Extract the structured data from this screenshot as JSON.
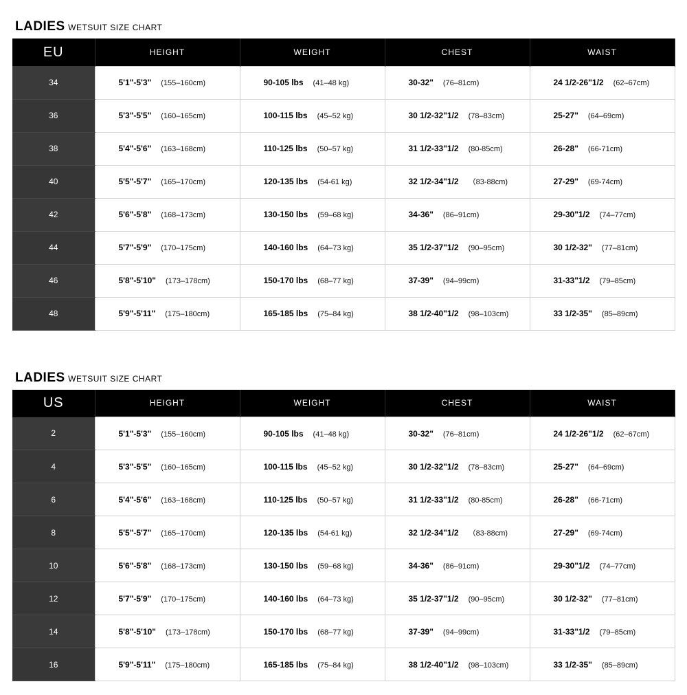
{
  "common": {
    "title_bold": "LADIES",
    "title_light": "WETSUIT SIZE CHART",
    "columns": [
      "HEIGHT",
      "WEIGHT",
      "CHEST",
      "WAIST"
    ],
    "rows": [
      {
        "height_imp": "5'1\"-5'3\"",
        "height_cm": "(155–160cm)",
        "weight_lbs": "90-105 lbs",
        "weight_kg": "(41–48 kg)",
        "chest_in": "30-32\"",
        "chest_cm": "(76–81cm)",
        "waist_in": "24 1/2-26\"1/2",
        "waist_cm": "(62–67cm)"
      },
      {
        "height_imp": "5'3\"-5'5\"",
        "height_cm": "(160–165cm)",
        "weight_lbs": "100-115 lbs",
        "weight_kg": "(45–52 kg)",
        "chest_in": "30 1/2-32\"1/2",
        "chest_cm": "(78–83cm)",
        "waist_in": "25-27\"",
        "waist_cm": "(64–69cm)"
      },
      {
        "height_imp": "5'4\"-5'6\"",
        "height_cm": "(163–168cm)",
        "weight_lbs": "110-125 lbs",
        "weight_kg": "(50–57 kg)",
        "chest_in": "31 1/2-33\"1/2",
        "chest_cm": "(80-85cm)",
        "waist_in": "26-28\"",
        "waist_cm": "(66-71cm)"
      },
      {
        "height_imp": "5'5\"-5'7\"",
        "height_cm": "(165–170cm)",
        "weight_lbs": "120-135 lbs",
        "weight_kg": "(54-61 kg)",
        "chest_in": "32 1/2-34\"1/2",
        "chest_cm": "（83-88cm)",
        "waist_in": "27-29\"",
        "waist_cm": "(69-74cm)"
      },
      {
        "height_imp": "5'6\"-5'8\"",
        "height_cm": "(168–173cm)",
        "weight_lbs": "130-150 lbs",
        "weight_kg": "(59–68 kg)",
        "chest_in": "34-36\"",
        "chest_cm": "(86–91cm)",
        "waist_in": "29-30\"1/2",
        "waist_cm": "(74–77cm)"
      },
      {
        "height_imp": "5'7\"-5'9\"",
        "height_cm": "(170–175cm)",
        "weight_lbs": "140-160 lbs",
        "weight_kg": "(64–73 kg)",
        "chest_in": "35 1/2-37\"1/2",
        "chest_cm": "(90–95cm)",
        "waist_in": "30 1/2-32\"",
        "waist_cm": "(77–81cm)"
      },
      {
        "height_imp": "5'8\"-5'10\"",
        "height_cm": "(173–178cm)",
        "weight_lbs": "150-170 lbs",
        "weight_kg": "(68–77 kg)",
        "chest_in": "37-39\"",
        "chest_cm": "(94–99cm)",
        "waist_in": "31-33\"1/2",
        "waist_cm": "(79–85cm)"
      },
      {
        "height_imp": "5'9\"-5'11\"",
        "height_cm": "(175–180cm)",
        "weight_lbs": "165-185 lbs",
        "weight_kg": "(75–84 kg)",
        "chest_in": "38 1/2-40\"1/2",
        "chest_cm": "(98–103cm)",
        "waist_in": "33 1/2-35\"",
        "waist_cm": "(85–89cm)"
      }
    ]
  },
  "tables": [
    {
      "size_header": "EU",
      "sizes": [
        "34",
        "36",
        "38",
        "40",
        "42",
        "44",
        "46",
        "48"
      ]
    },
    {
      "size_header": "US",
      "sizes": [
        "2",
        "4",
        "6",
        "8",
        "10",
        "12",
        "14",
        "16"
      ]
    }
  ],
  "style": {
    "header_bg": "#000000",
    "header_fg": "#ffffff",
    "size_col_bg": "#3a3a3a",
    "cell_border": "#d0d0d0",
    "body_bg": "#ffffff"
  }
}
